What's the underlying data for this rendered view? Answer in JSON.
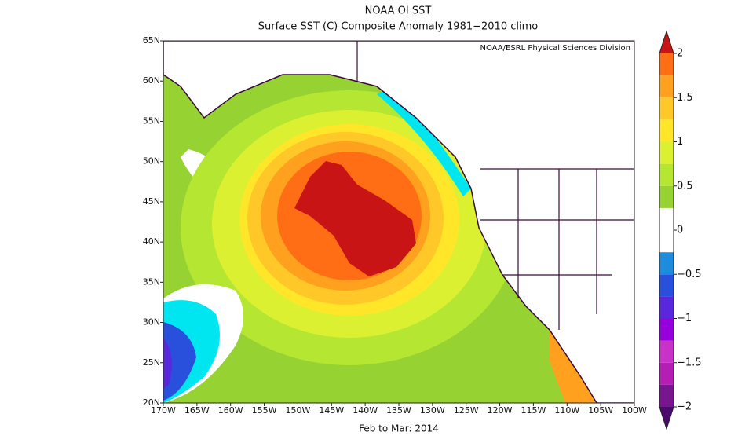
{
  "map": {
    "title": "NOAA OI SST",
    "subtitle": "Surface SST (C) Composite Anomaly 1981−2010 climo",
    "credit": "NOAA/ESRL Physical Sciences Division",
    "period": "Feb to Mar: 2014",
    "xlim": [
      -170,
      -100
    ],
    "ylim": [
      20,
      65
    ],
    "xticks": [
      {
        "value": -170,
        "label": "170W"
      },
      {
        "value": -165,
        "label": "165W"
      },
      {
        "value": -160,
        "label": "160W"
      },
      {
        "value": -155,
        "label": "155W"
      },
      {
        "value": -150,
        "label": "150W"
      },
      {
        "value": -145,
        "label": "145W"
      },
      {
        "value": -140,
        "label": "140W"
      },
      {
        "value": -135,
        "label": "135W"
      },
      {
        "value": -130,
        "label": "130W"
      },
      {
        "value": -125,
        "label": "125W"
      },
      {
        "value": -120,
        "label": "120W"
      },
      {
        "value": -115,
        "label": "115W"
      },
      {
        "value": -110,
        "label": "110W"
      },
      {
        "value": -105,
        "label": "105W"
      },
      {
        "value": -100,
        "label": "100W"
      }
    ],
    "yticks": [
      {
        "value": 20,
        "label": "20N"
      },
      {
        "value": 25,
        "label": "25N"
      },
      {
        "value": 30,
        "label": "30N"
      },
      {
        "value": 35,
        "label": "35N"
      },
      {
        "value": 40,
        "label": "40N"
      },
      {
        "value": 45,
        "label": "45N"
      },
      {
        "value": 50,
        "label": "50N"
      },
      {
        "value": 55,
        "label": "55N"
      },
      {
        "value": 60,
        "label": "60N"
      },
      {
        "value": 65,
        "label": "65N"
      }
    ],
    "colorbar": {
      "lim": [
        -2,
        2
      ],
      "ticks": [
        2,
        1.5,
        1,
        0.5,
        0,
        {
          "value": -0.5,
          "label": "−0.5"
        },
        {
          "value": -1,
          "label": "−1"
        },
        {
          "value": -1.5,
          "label": "−1.5"
        },
        {
          "value": -2,
          "label": "−2"
        }
      ],
      "colors": [
        "#7a1590",
        "#b41eb4",
        "#c832c8",
        "#9600dc",
        "#5a28dc",
        "#2850dc",
        "#1e8cdc",
        "#ffffff",
        "#ffffff",
        "#96d232",
        "#b4e632",
        "#dcf032",
        "#ffe628",
        "#ffc828",
        "#ffa01e",
        "#ff6e14"
      ],
      "under_color": "#4b0a6e",
      "over_color": "#c81414"
    }
  }
}
